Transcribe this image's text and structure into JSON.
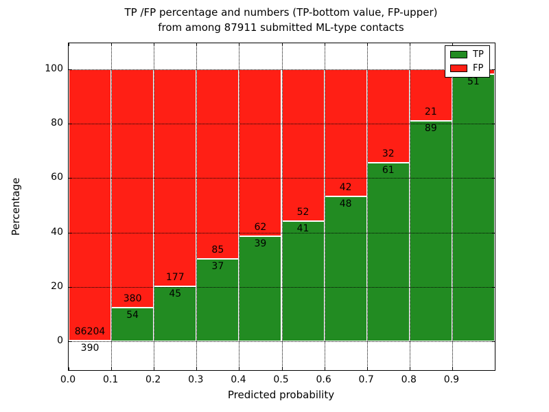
{
  "figure": {
    "title_line1": "TP /FP percentage and numbers (TP-bottom value, FP-upper)",
    "title_line2": "from among 87911 submitted ML-type contacts",
    "xlabel": "Predicted probability",
    "ylabel": "Percentage"
  },
  "colors": {
    "tp_green": "#228b22",
    "fp_red": "#ff1f15",
    "gridline": "#000000",
    "frame": "#000000",
    "background": "#ffffff"
  },
  "chart_data": {
    "type": "bar",
    "stacked": true,
    "title": "TP /FP percentage and numbers (TP-bottom value, FP-upper)\nfrom among 87911 submitted ML-type contacts",
    "total_contacts": 87911,
    "xlabel": "Predicted probability",
    "ylabel": "Percentage",
    "xlim": [
      0.0,
      1.0
    ],
    "ylim": [
      -10.5,
      109.5
    ],
    "grid": true,
    "legend_position": "upper right",
    "bin_width": 0.1,
    "xtick_labels": [
      "0.0",
      "0.1",
      "0.2",
      "0.3",
      "0.4",
      "0.5",
      "0.6",
      "0.7",
      "0.8",
      "0.9"
    ],
    "xtick_values": [
      0.0,
      0.1,
      0.2,
      0.3,
      0.4,
      0.5,
      0.6,
      0.7,
      0.8,
      0.9
    ],
    "ytick_values": [
      0,
      20,
      40,
      60,
      80,
      100
    ],
    "legend": [
      {
        "label": "TP",
        "color": "#228b22"
      },
      {
        "label": "FP",
        "color": "#ff1f15"
      }
    ],
    "bars": [
      {
        "bin_start": 0.0,
        "tp_count": 390,
        "fp_count": 86204,
        "tp_pct": 0.45
      },
      {
        "bin_start": 0.1,
        "tp_count": 54,
        "fp_count": 380,
        "tp_pct": 12.44
      },
      {
        "bin_start": 0.2,
        "tp_count": 45,
        "fp_count": 177,
        "tp_pct": 20.27
      },
      {
        "bin_start": 0.3,
        "tp_count": 37,
        "fp_count": 85,
        "tp_pct": 30.33
      },
      {
        "bin_start": 0.4,
        "tp_count": 39,
        "fp_count": 62,
        "tp_pct": 38.61
      },
      {
        "bin_start": 0.5,
        "tp_count": 41,
        "fp_count": 52,
        "tp_pct": 44.09
      },
      {
        "bin_start": 0.6,
        "tp_count": 48,
        "fp_count": 42,
        "tp_pct": 53.33
      },
      {
        "bin_start": 0.7,
        "tp_count": 61,
        "fp_count": 32,
        "tp_pct": 65.59
      },
      {
        "bin_start": 0.8,
        "tp_count": 89,
        "fp_count": 21,
        "tp_pct": 80.91
      },
      {
        "bin_start": 0.9,
        "tp_count": 51,
        "fp_count": null,
        "tp_pct": 98.08
      }
    ]
  }
}
